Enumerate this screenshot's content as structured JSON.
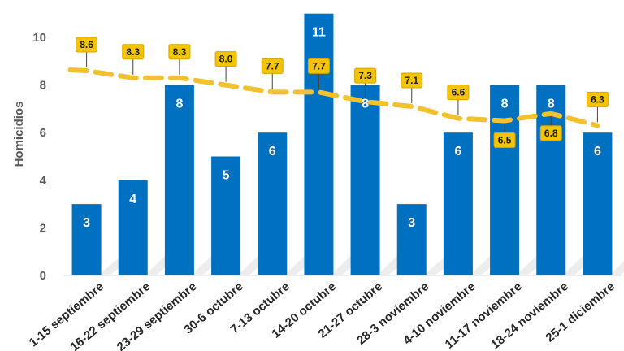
{
  "chart_data": {
    "type": "bar",
    "ylabel": "Homicidios",
    "ylim": [
      0,
      10
    ],
    "yticks": [
      0,
      2,
      4,
      6,
      8,
      10
    ],
    "grid": false,
    "categories": [
      "1-15 septiembre",
      "16-22 septiembre",
      "23-29 septiembre",
      "30-6 octubre",
      "7-13 octubre",
      "14-20 octubre",
      "21-27 octubre",
      "28-3 noviembre",
      "4-10 noviembre",
      "11-17 noviembre",
      "18-24 noviembre",
      "25-1 diciembre"
    ],
    "series": [
      {
        "type": "bar",
        "values": [
          3,
          4,
          8,
          5,
          6,
          11,
          8,
          3,
          6,
          8,
          8,
          6
        ],
        "color": "#0070C0"
      },
      {
        "type": "line",
        "style": "dashed",
        "values": [
          8.6,
          8.3,
          8.3,
          8.0,
          7.7,
          7.7,
          7.3,
          7.1,
          6.6,
          6.5,
          6.8,
          6.3
        ],
        "labels": [
          "8.6",
          "8.3",
          "8.3",
          "8.0",
          "7.7",
          "7.7",
          "7.3",
          "7.1",
          "6.6",
          "6.5",
          "6.8",
          "6.3"
        ],
        "color": "#F2C12E"
      }
    ]
  }
}
